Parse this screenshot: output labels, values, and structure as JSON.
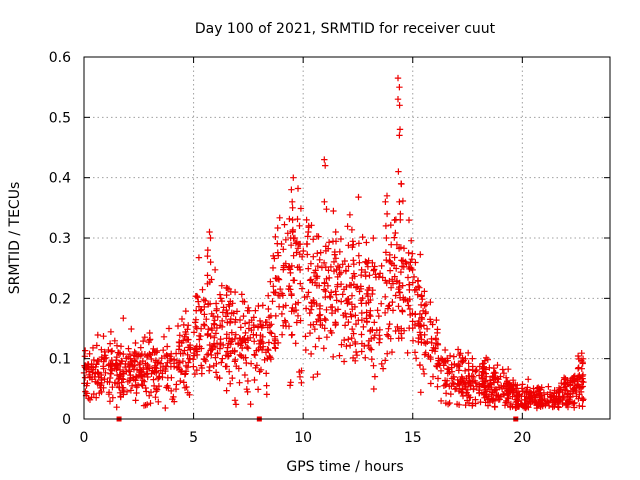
{
  "chart_data": {
    "type": "scatter",
    "title": "Day 100 of 2021, SRMTID for receiver cuut",
    "xlabel": "GPS time / hours",
    "ylabel": "SRMTID / TECUs",
    "xlim": [
      0,
      24
    ],
    "ylim": [
      0,
      0.6
    ],
    "xticks": [
      0,
      5,
      10,
      15,
      20
    ],
    "yticks": [
      0,
      0.1,
      0.2,
      0.3,
      0.4,
      0.5,
      0.6
    ],
    "xtick_labels": [
      "0",
      "5",
      "10",
      "15",
      "20"
    ],
    "ytick_labels": [
      "0",
      "0.1",
      "0.2",
      "0.3",
      "0.4",
      "0.5",
      "0.6"
    ],
    "grid": true,
    "marker": "+",
    "color": "#ee0000",
    "x_data_end": 22.8,
    "gap_markers_x": [
      1.6,
      8.0,
      19.7
    ],
    "trend": [
      [
        0.0,
        0.075
      ],
      [
        1.0,
        0.085
      ],
      [
        2.0,
        0.085
      ],
      [
        3.0,
        0.085
      ],
      [
        4.0,
        0.09
      ],
      [
        4.8,
        0.11
      ],
      [
        5.3,
        0.15
      ],
      [
        5.8,
        0.16
      ],
      [
        6.3,
        0.15
      ],
      [
        7.0,
        0.14
      ],
      [
        7.6,
        0.12
      ],
      [
        8.3,
        0.13
      ],
      [
        9.0,
        0.22
      ],
      [
        9.6,
        0.24
      ],
      [
        10.3,
        0.23
      ],
      [
        11.0,
        0.22
      ],
      [
        11.8,
        0.2
      ],
      [
        12.5,
        0.2
      ],
      [
        13.3,
        0.19
      ],
      [
        14.0,
        0.21
      ],
      [
        14.6,
        0.23
      ],
      [
        15.3,
        0.17
      ],
      [
        15.8,
        0.12
      ],
      [
        16.3,
        0.08
      ],
      [
        17.0,
        0.065
      ],
      [
        18.0,
        0.06
      ],
      [
        19.0,
        0.05
      ],
      [
        19.8,
        0.035
      ],
      [
        20.5,
        0.03
      ],
      [
        21.5,
        0.03
      ],
      [
        22.2,
        0.045
      ],
      [
        22.8,
        0.075
      ]
    ],
    "spikes": [
      {
        "x": 5.7,
        "values": [
          0.31,
          0.3,
          0.28,
          0.27,
          0.26
        ]
      },
      {
        "x": 9.5,
        "values": [
          0.4,
          0.38,
          0.36,
          0.35,
          0.33,
          0.31,
          0.3
        ]
      },
      {
        "x": 9.85,
        "values": [
          0.06,
          0.07,
          0.08
        ]
      },
      {
        "x": 11.0,
        "values": [
          0.43,
          0.42,
          0.36
        ]
      },
      {
        "x": 14.4,
        "values": [
          0.565,
          0.55,
          0.53,
          0.52,
          0.48,
          0.47,
          0.41,
          0.39,
          0.36,
          0.34,
          0.33
        ]
      },
      {
        "x": 13.8,
        "values": [
          0.37,
          0.36,
          0.34,
          0.32,
          0.3
        ]
      },
      {
        "x": 10.2,
        "values": [
          0.33,
          0.32,
          0.31,
          0.29
        ]
      }
    ]
  }
}
